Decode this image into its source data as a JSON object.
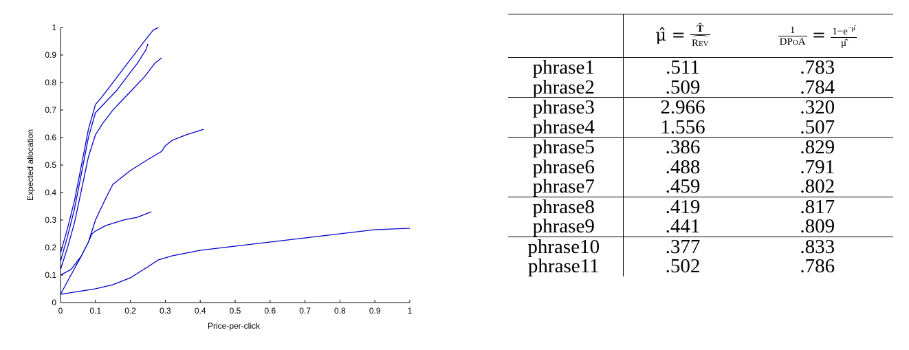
{
  "chart_data": {
    "type": "line",
    "title": "",
    "xlabel": "Price-per-click",
    "ylabel": "Expected allocation",
    "xlim": [
      0,
      1
    ],
    "ylim": [
      0,
      1
    ],
    "xticks": [
      "0",
      "0.1",
      "0.2",
      "0.3",
      "0.4",
      "0.5",
      "0.6",
      "0.7",
      "0.8",
      "0.9",
      "1"
    ],
    "yticks": [
      "0",
      "0.1",
      "0.2",
      "0.3",
      "0.4",
      "0.5",
      "0.6",
      "0.7",
      "0.8",
      "0.9",
      "1"
    ],
    "grid": false,
    "color": "#0000cc",
    "series": [
      {
        "x": [
          0,
          0.02,
          0.04,
          0.06,
          0.08,
          0.1,
          0.12,
          0.15,
          0.18,
          0.21,
          0.24,
          0.265,
          0.28
        ],
        "y": [
          0.18,
          0.27,
          0.37,
          0.5,
          0.63,
          0.72,
          0.75,
          0.8,
          0.85,
          0.9,
          0.95,
          0.99,
          1.0
        ]
      },
      {
        "x": [
          0,
          0.02,
          0.04,
          0.06,
          0.08,
          0.1,
          0.13,
          0.16,
          0.19,
          0.22,
          0.245,
          0.25
        ],
        "y": [
          0.15,
          0.24,
          0.34,
          0.47,
          0.6,
          0.69,
          0.73,
          0.77,
          0.82,
          0.87,
          0.92,
          0.94
        ]
      },
      {
        "x": [
          0,
          0.02,
          0.04,
          0.06,
          0.08,
          0.1,
          0.12,
          0.15,
          0.18,
          0.21,
          0.24,
          0.27,
          0.29
        ],
        "y": [
          0.12,
          0.2,
          0.29,
          0.41,
          0.53,
          0.61,
          0.65,
          0.7,
          0.74,
          0.78,
          0.82,
          0.87,
          0.89
        ]
      },
      {
        "x": [
          0,
          0.03,
          0.06,
          0.08,
          0.1,
          0.13,
          0.15,
          0.2,
          0.25,
          0.29,
          0.3,
          0.32,
          0.36,
          0.41
        ],
        "y": [
          0.03,
          0.1,
          0.17,
          0.22,
          0.3,
          0.38,
          0.43,
          0.48,
          0.52,
          0.55,
          0.57,
          0.59,
          0.61,
          0.63
        ]
      },
      {
        "x": [
          0,
          0.03,
          0.06,
          0.08,
          0.09,
          0.1,
          0.13,
          0.18,
          0.22,
          0.26
        ],
        "y": [
          0.1,
          0.12,
          0.17,
          0.22,
          0.25,
          0.26,
          0.28,
          0.3,
          0.31,
          0.33
        ]
      },
      {
        "x": [
          0,
          0.05,
          0.1,
          0.15,
          0.2,
          0.25,
          0.28,
          0.32,
          0.4,
          0.5,
          0.6,
          0.7,
          0.8,
          0.9,
          1.0
        ],
        "y": [
          0.03,
          0.04,
          0.05,
          0.065,
          0.09,
          0.13,
          0.155,
          0.17,
          0.19,
          0.205,
          0.22,
          0.235,
          0.25,
          0.265,
          0.27
        ]
      }
    ]
  },
  "table": {
    "header": {
      "mu_symbol": "μ̂ =",
      "mu_num": "T̂",
      "mu_den": "Rev",
      "dpoa_num": "1",
      "dpoa_den": "DPoA",
      "eq": "=",
      "rhs_num_base": "1−e",
      "rhs_num_exp": "−μ̂",
      "rhs_den": "μ̂"
    },
    "rows": [
      {
        "name": "phrase1",
        "mu": ".511",
        "dpoa": ".783",
        "group_start": false
      },
      {
        "name": "phrase2",
        "mu": ".509",
        "dpoa": ".784",
        "group_start": false
      },
      {
        "name": "phrase3",
        "mu": "2.966",
        "dpoa": ".320",
        "group_start": true
      },
      {
        "name": "phrase4",
        "mu": "1.556",
        "dpoa": ".507",
        "group_start": false
      },
      {
        "name": "phrase5",
        "mu": ".386",
        "dpoa": ".829",
        "group_start": true
      },
      {
        "name": "phrase6",
        "mu": ".488",
        "dpoa": ".791",
        "group_start": false
      },
      {
        "name": "phrase7",
        "mu": ".459",
        "dpoa": ".802",
        "group_start": false
      },
      {
        "name": "phrase8",
        "mu": ".419",
        "dpoa": ".817",
        "group_start": true
      },
      {
        "name": "phrase9",
        "mu": ".441",
        "dpoa": ".809",
        "group_start": false
      },
      {
        "name": "phrase10",
        "mu": ".377",
        "dpoa": ".833",
        "group_start": true
      },
      {
        "name": "phrase11",
        "mu": ".502",
        "dpoa": ".786",
        "group_start": false
      }
    ]
  }
}
